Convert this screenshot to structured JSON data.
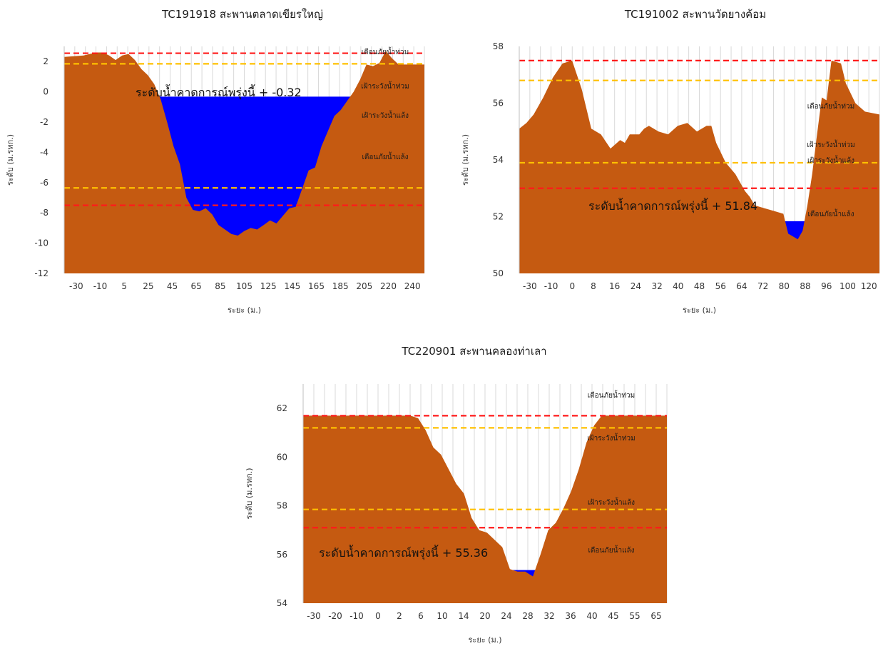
{
  "chart_data": [
    {
      "type": "area",
      "title": "TC191918 สะพานตลาดเขียรใหญ่",
      "xlabel": "ระยะ (ม.)",
      "ylabel": "ระดับ (ม.รทก.)",
      "ylim": [
        -12,
        3
      ],
      "yticks": [
        "2",
        "0",
        "-2",
        "-4",
        "-6",
        "-8",
        "-10",
        "-12"
      ],
      "xticks": [
        "-30",
        "-10",
        "5",
        "25",
        "45",
        "65",
        "85",
        "105",
        "125",
        "145",
        "165",
        "185",
        "205",
        "220",
        "240"
      ],
      "ground": [
        [
          -30,
          2.3
        ],
        [
          -15,
          2.4
        ],
        [
          -5,
          2.6
        ],
        [
          0,
          2.6
        ],
        [
          5,
          2.4
        ],
        [
          10,
          2.1
        ],
        [
          15,
          2.4
        ],
        [
          20,
          2.5
        ],
        [
          25,
          2.1
        ],
        [
          30,
          1.5
        ],
        [
          35,
          1.1
        ],
        [
          40,
          0.5
        ],
        [
          45,
          -0.5
        ],
        [
          50,
          -2.0
        ],
        [
          55,
          -3.6
        ],
        [
          60,
          -4.8
        ],
        [
          65,
          -7.0
        ],
        [
          70,
          -7.8
        ],
        [
          75,
          -7.9
        ],
        [
          80,
          -7.7
        ],
        [
          85,
          -8.1
        ],
        [
          90,
          -8.8
        ],
        [
          95,
          -9.1
        ],
        [
          100,
          -9.4
        ],
        [
          105,
          -9.5
        ],
        [
          110,
          -9.2
        ],
        [
          115,
          -9.0
        ],
        [
          120,
          -9.1
        ],
        [
          125,
          -8.8
        ],
        [
          130,
          -8.5
        ],
        [
          135,
          -8.7
        ],
        [
          140,
          -8.2
        ],
        [
          145,
          -7.7
        ],
        [
          150,
          -7.6
        ],
        [
          155,
          -6.4
        ],
        [
          160,
          -5.2
        ],
        [
          165,
          -5.0
        ],
        [
          170,
          -3.6
        ],
        [
          175,
          -2.6
        ],
        [
          180,
          -1.6
        ],
        [
          185,
          -1.2
        ],
        [
          190,
          -0.6
        ],
        [
          195,
          0.0
        ],
        [
          200,
          0.8
        ],
        [
          205,
          1.8
        ],
        [
          210,
          1.7
        ],
        [
          215,
          1.9
        ],
        [
          220,
          2.7
        ],
        [
          225,
          2.2
        ],
        [
          230,
          1.8
        ],
        [
          240,
          1.8
        ],
        [
          250,
          1.8
        ]
      ],
      "x_range": [
        -30,
        250
      ],
      "water_level": -0.32,
      "forecast_label": "ระดับน้ำคาดการณ์พรุ่งนี้ +",
      "forecast_value": "-0.32",
      "thresholds": [
        {
          "name": "เตือนภัยน้ำท่วม",
          "value": 2.55,
          "color": "#ff1a1a"
        },
        {
          "name": "เฝ้าระวังน้ำท่วม",
          "value": 1.85,
          "color": "#ffc000"
        },
        {
          "name": "เฝ้าระวังน้ำแล้ง",
          "value": -6.35,
          "color": "#ffc000"
        },
        {
          "name": "เตือนภัยน้ำแล้ง",
          "value": -7.5,
          "color": "#ff1a1a"
        }
      ]
    },
    {
      "type": "area",
      "title": "TC191002 สะพานวัดยางค้อม",
      "xlabel": "ระยะ (ม.)",
      "ylabel": "ระดับ (ม.รทก.)",
      "ylim": [
        50,
        58
      ],
      "yticks": [
        "58",
        "56",
        "54",
        "52",
        "50"
      ],
      "xticks": [
        "-30",
        "-10",
        "0",
        "8",
        "16",
        "24",
        "32",
        "40",
        "48",
        "56",
        "64",
        "72",
        "80",
        "88",
        "96",
        "100",
        "120"
      ],
      "ground": [
        [
          -30,
          55.1
        ],
        [
          -27,
          55.3
        ],
        [
          -24,
          55.6
        ],
        [
          -20,
          56.2
        ],
        [
          -16,
          56.9
        ],
        [
          -12,
          57.4
        ],
        [
          -8,
          57.5
        ],
        [
          -4,
          56.5
        ],
        [
          0,
          55.1
        ],
        [
          4,
          54.9
        ],
        [
          8,
          54.4
        ],
        [
          12,
          54.7
        ],
        [
          14,
          54.6
        ],
        [
          16,
          54.9
        ],
        [
          20,
          54.9
        ],
        [
          22,
          55.1
        ],
        [
          24,
          55.2
        ],
        [
          28,
          55.0
        ],
        [
          32,
          54.9
        ],
        [
          36,
          55.2
        ],
        [
          40,
          55.3
        ],
        [
          44,
          55.0
        ],
        [
          48,
          55.2
        ],
        [
          50,
          55.2
        ],
        [
          52,
          54.6
        ],
        [
          56,
          53.9
        ],
        [
          60,
          53.5
        ],
        [
          64,
          52.9
        ],
        [
          66,
          52.7
        ],
        [
          68,
          52.4
        ],
        [
          72,
          52.3
        ],
        [
          76,
          52.2
        ],
        [
          80,
          52.1
        ],
        [
          82,
          51.4
        ],
        [
          84,
          51.3
        ],
        [
          86,
          51.2
        ],
        [
          88,
          51.5
        ],
        [
          90,
          52.4
        ],
        [
          92,
          53.5
        ],
        [
          94,
          54.9
        ],
        [
          96,
          56.2
        ],
        [
          98,
          56.1
        ],
        [
          100,
          57.5
        ],
        [
          104,
          57.4
        ],
        [
          106,
          56.7
        ],
        [
          110,
          56.0
        ],
        [
          114,
          55.7
        ],
        [
          120,
          55.6
        ]
      ],
      "x_range": [
        -30,
        120
      ],
      "water_level": 51.84,
      "forecast_label": "ระดับน้ำคาดการณ์พรุ่งนี้ +",
      "forecast_value": "51.84",
      "thresholds": [
        {
          "name": "เตือนภัยน้ำท่วม",
          "value": 57.5,
          "color": "#ff1a1a"
        },
        {
          "name": "เฝ้าระวังน้ำท่วม",
          "value": 56.8,
          "color": "#ffc000"
        },
        {
          "name": "เฝ้าระวังน้ำแล้ง",
          "value": 53.9,
          "color": "#ffc000"
        },
        {
          "name": "เตือนภัยน้ำแล้ง",
          "value": 53.0,
          "color": "#ff1a1a"
        }
      ]
    },
    {
      "type": "area",
      "title": "TC220901 สะพานคลองท่าเลา",
      "xlabel": "ระยะ (ม.)",
      "ylabel": "ระดับ (ม.รทก.)",
      "ylim": [
        54,
        63
      ],
      "yticks": [
        "62",
        "60",
        "58",
        "56",
        "54"
      ],
      "xticks": [
        "-30",
        "-20",
        "-10",
        "0",
        "2",
        "6",
        "10",
        "14",
        "20",
        "24",
        "28",
        "32",
        "36",
        "40",
        "45",
        "55",
        "65"
      ],
      "ground": [
        [
          -30,
          61.7
        ],
        [
          -20,
          61.7
        ],
        [
          -10,
          61.7
        ],
        [
          -2,
          61.7
        ],
        [
          0,
          61.6
        ],
        [
          2,
          61.1
        ],
        [
          4,
          60.4
        ],
        [
          6,
          60.1
        ],
        [
          8,
          59.5
        ],
        [
          10,
          58.9
        ],
        [
          12,
          58.5
        ],
        [
          14,
          57.5
        ],
        [
          16,
          57.0
        ],
        [
          18,
          56.9
        ],
        [
          20,
          56.6
        ],
        [
          22,
          56.3
        ],
        [
          24,
          55.4
        ],
        [
          26,
          55.3
        ],
        [
          28,
          55.3
        ],
        [
          30,
          55.1
        ],
        [
          32,
          56.0
        ],
        [
          34,
          57.0
        ],
        [
          36,
          57.3
        ],
        [
          38,
          57.9
        ],
        [
          40,
          58.6
        ],
        [
          42,
          59.5
        ],
        [
          44,
          60.6
        ],
        [
          46,
          61.3
        ],
        [
          48,
          61.7
        ],
        [
          55,
          61.7
        ],
        [
          65,
          61.7
        ]
      ],
      "x_range": [
        -30,
        65
      ],
      "water_level": 55.36,
      "forecast_label": "ระดับน้ำคาดการณ์พรุ่งนี้ +",
      "forecast_value": "55.36",
      "thresholds": [
        {
          "name": "เตือนภัยน้ำท่วม",
          "value": 61.7,
          "color": "#ff1a1a"
        },
        {
          "name": "เฝ้าระวังน้ำท่วม",
          "value": 61.2,
          "color": "#ffc000"
        },
        {
          "name": "เฝ้าระวังน้ำแล้ง",
          "value": 57.85,
          "color": "#ffc000"
        },
        {
          "name": "เตือนภัยน้ำแล้ง",
          "value": 57.1,
          "color": "#ff1a1a"
        }
      ]
    }
  ],
  "colors": {
    "ground": "#c55a11",
    "water": "#0000ff",
    "grid": "#d9d9d9"
  }
}
